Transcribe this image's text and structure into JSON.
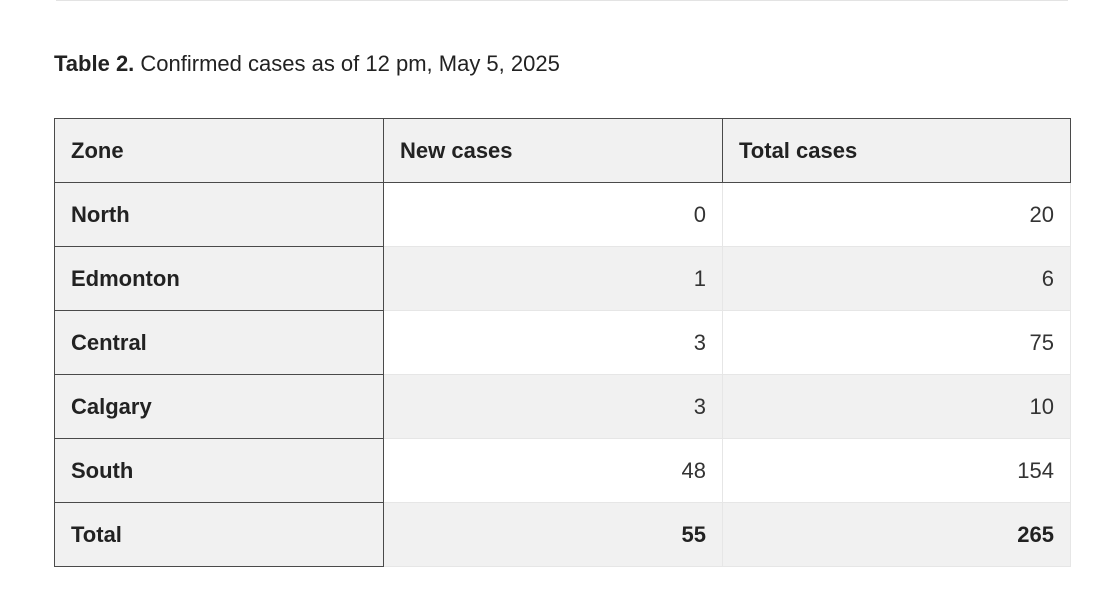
{
  "caption": {
    "label": "Table 2.",
    "text": " Confirmed cases as of 12 pm, May 5, 2025"
  },
  "table": {
    "headers": [
      "Zone",
      "New cases",
      "Total cases"
    ],
    "rows": [
      {
        "zone": "North",
        "new_cases": "0",
        "total_cases": "20"
      },
      {
        "zone": "Edmonton",
        "new_cases": "1",
        "total_cases": "6"
      },
      {
        "zone": "Central",
        "new_cases": "3",
        "total_cases": "75"
      },
      {
        "zone": "Calgary",
        "new_cases": "3",
        "total_cases": "10"
      },
      {
        "zone": "South",
        "new_cases": "48",
        "total_cases": "154"
      }
    ],
    "total": {
      "zone": "Total",
      "new_cases": "55",
      "total_cases": "265"
    }
  }
}
